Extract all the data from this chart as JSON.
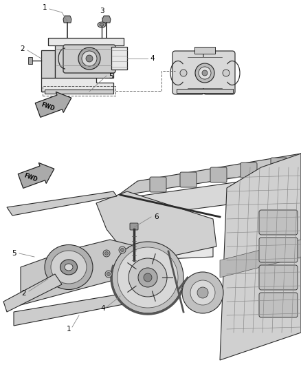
{
  "background_color": "#ffffff",
  "fig_width": 4.38,
  "fig_height": 5.33,
  "dpi": 100,
  "line_color": "#333333",
  "label_fontsize": 7.5,
  "thin_line": 0.5,
  "med_line": 0.8,
  "thick_line": 1.2
}
